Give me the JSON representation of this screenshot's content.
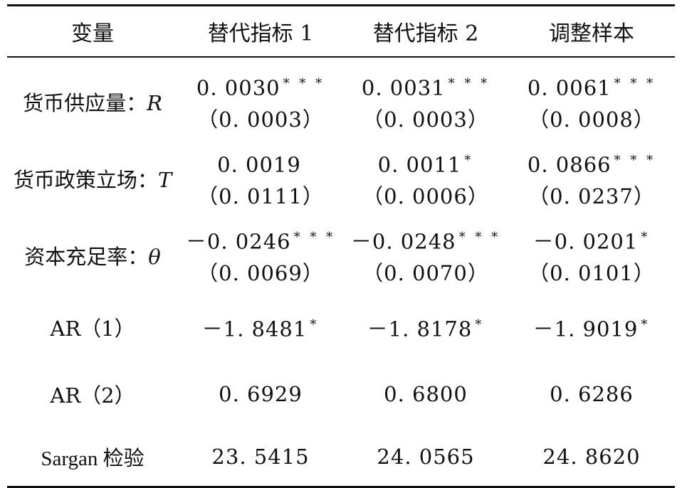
{
  "table": {
    "headers": [
      "变量",
      "替代指标 1",
      "替代指标 2",
      "调整样本"
    ],
    "rows": [
      {
        "label": "货币供应量：",
        "symbol": "R",
        "cells": [
          {
            "coef": "0. 0030",
            "stars": "* * *",
            "se": "（0. 0003）"
          },
          {
            "coef": "0. 0031",
            "stars": "* * *",
            "se": "（0. 0003）"
          },
          {
            "coef": "0. 0061",
            "stars": "* * *",
            "se": "（0. 0008）"
          }
        ]
      },
      {
        "label": "货币政策立场：",
        "symbol": "T",
        "cells": [
          {
            "coef": "0. 0019",
            "stars": "",
            "se": "（0. 0111）"
          },
          {
            "coef": "0. 0011",
            "stars": "*",
            "se": "（0. 0006）"
          },
          {
            "coef": "0. 0866",
            "stars": "* * *",
            "se": "（0. 0237）"
          }
        ]
      },
      {
        "label": "资本充足率：",
        "symbol": "θ",
        "cells": [
          {
            "coef": "－0. 0246",
            "stars": "* * *",
            "se": "（0. 0069）"
          },
          {
            "coef": "－0. 0248",
            "stars": "* * *",
            "se": "（0. 0070）"
          },
          {
            "coef": "－0. 0201",
            "stars": "*",
            "se": "（0. 0101）"
          }
        ]
      },
      {
        "label": "AR（1）",
        "symbol": "",
        "cells": [
          {
            "coef": "－1. 8481",
            "stars": "*",
            "se": ""
          },
          {
            "coef": "－1. 8178",
            "stars": "*",
            "se": ""
          },
          {
            "coef": "－1. 9019",
            "stars": "*",
            "se": ""
          }
        ]
      },
      {
        "label": "AR（2）",
        "symbol": "",
        "cells": [
          {
            "coef": "0. 6929",
            "stars": "",
            "se": ""
          },
          {
            "coef": "0. 6800",
            "stars": "",
            "se": ""
          },
          {
            "coef": "0. 6286",
            "stars": "",
            "se": ""
          }
        ]
      },
      {
        "label": "Sargan 检验",
        "symbol": "",
        "cells": [
          {
            "coef": "23. 5415",
            "stars": "",
            "se": ""
          },
          {
            "coef": "24. 0565",
            "stars": "",
            "se": ""
          },
          {
            "coef": "24. 8620",
            "stars": "",
            "se": ""
          }
        ]
      }
    ]
  }
}
